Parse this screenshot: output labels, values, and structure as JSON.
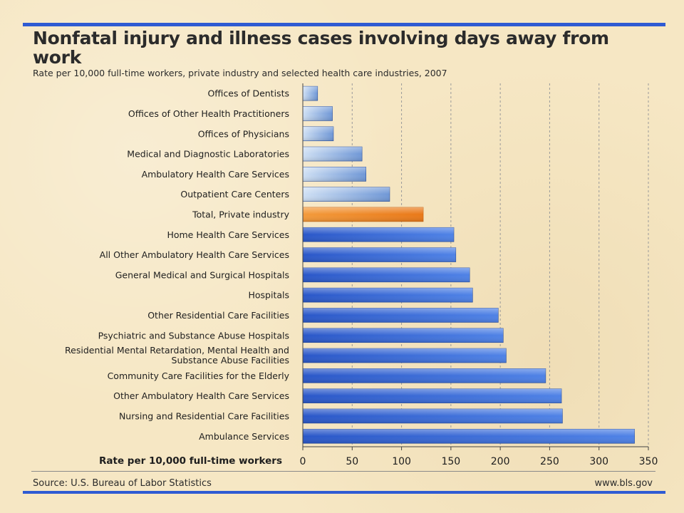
{
  "header": {
    "title": "Nonfatal injury and illness cases involving days away from work",
    "subtitle": "Rate per 10,000 full-time workers, private industry and selected health care industries, 2007"
  },
  "footer": {
    "source": "Source: U.S. Bureau of Labor Statistics",
    "website": "www.bls.gov"
  },
  "colors": {
    "rule": "#2f5bd3",
    "bar_light": "#8fb0df",
    "bar_dark": "#2f5fd0",
    "bar_highlight": "#f08a2a"
  },
  "chart_data": {
    "type": "bar",
    "orientation": "horizontal",
    "title": "Nonfatal injury and illness cases involving days away from work",
    "subtitle": "Rate per 10,000 full-time workers, private industry and selected health care industries, 2007",
    "xlabel": "Rate per 10,000 full-time workers",
    "xlim": [
      0,
      350
    ],
    "xticks": [
      0,
      50,
      100,
      150,
      200,
      250,
      300,
      350
    ],
    "grid": "vertical dashed",
    "categories": [
      "Offices of Dentists",
      "Offices of Other Health Practitioners",
      "Offices of Physicians",
      "Medical and Diagnostic Laboratories",
      "Ambulatory Health Care Services",
      "Outpatient Care Centers",
      "Total, Private industry",
      "Home Health Care Services",
      "All Other Ambulatory Health Care Services",
      "General Medical and Surgical Hospitals",
      "Hospitals",
      "Other Residential Care Facilities",
      "Psychiatric and Substance Abuse Hospitals",
      "Residential Mental Retardation, Mental Health and Substance Abuse Facilities",
      "Community Care Facilities for the Elderly",
      "Other Ambulatory Health Care Services",
      "Nursing and Residential Care Facilities",
      "Ambulance Services"
    ],
    "category_lines": [
      [
        "Offices of Dentists"
      ],
      [
        "Offices of Other Health Practitioners"
      ],
      [
        "Offices of Physicians"
      ],
      [
        "Medical and Diagnostic Laboratories"
      ],
      [
        "Ambulatory Health Care Services"
      ],
      [
        "Outpatient Care Centers"
      ],
      [
        "Total, Private industry"
      ],
      [
        "Home Health Care Services"
      ],
      [
        "All Other Ambulatory Health Care Services"
      ],
      [
        "General Medical and Surgical Hospitals"
      ],
      [
        "Hospitals"
      ],
      [
        "Other Residential Care Facilities"
      ],
      [
        "Psychiatric and Substance Abuse Hospitals"
      ],
      [
        "Residential Mental Retardation, Mental Health and",
        "Substance Abuse  Facilities"
      ],
      [
        "Community Care Facilities for the Elderly"
      ],
      [
        "Other Ambulatory Health Care Services"
      ],
      [
        "Nursing and Residential Care Facilities"
      ],
      [
        "Ambulance Services"
      ]
    ],
    "values": [
      15,
      30,
      31,
      60,
      64,
      88,
      122,
      153,
      155,
      169,
      172,
      198,
      203,
      206,
      246,
      262,
      263,
      336
    ],
    "bar_style": [
      "light",
      "light",
      "light",
      "light",
      "light",
      "light",
      "highlight",
      "dark",
      "dark",
      "dark",
      "dark",
      "dark",
      "dark",
      "dark",
      "dark",
      "dark",
      "dark",
      "dark"
    ]
  }
}
